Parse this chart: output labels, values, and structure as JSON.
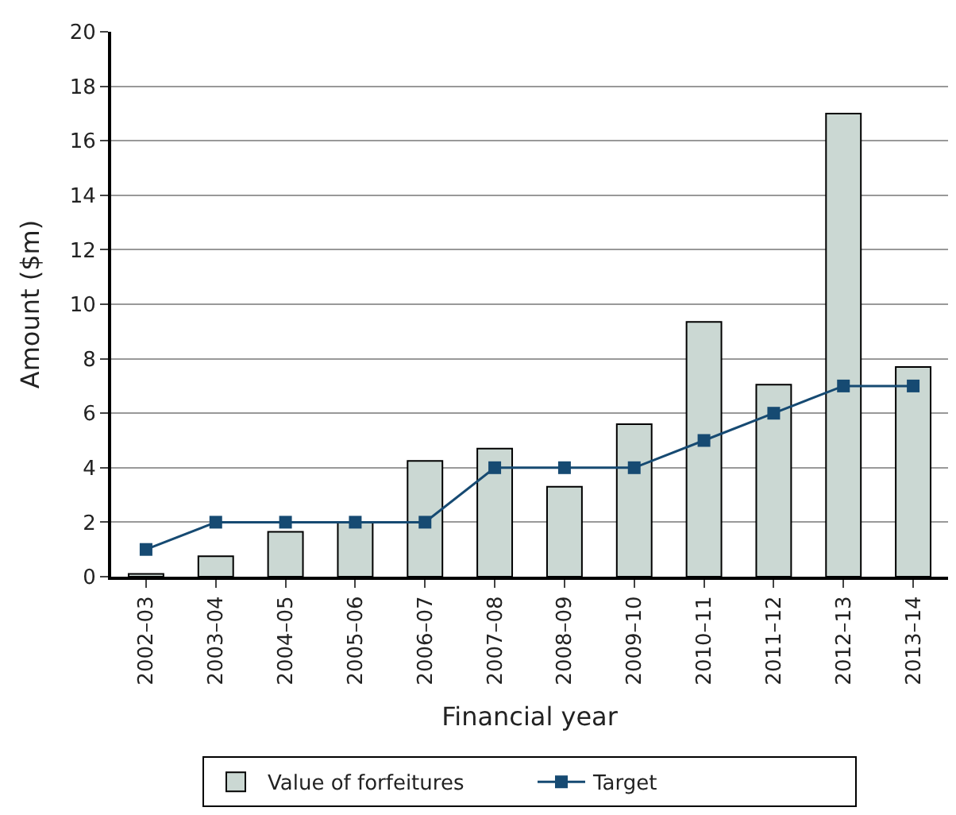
{
  "chart_data": {
    "type": "bar",
    "xlabel": "Financial year",
    "ylabel": "Amount ($m)",
    "categories": [
      "2002–03",
      "2003–04",
      "2004–05",
      "2005–06",
      "2006–07",
      "2007–08",
      "2008–09",
      "2009–10",
      "2010–11",
      "2011–12",
      "2012–13",
      "2013–14"
    ],
    "series": [
      {
        "name": "Value of forfeitures",
        "color": "#cbd8d3",
        "values": [
          0.1,
          0.75,
          1.65,
          2.0,
          4.25,
          4.7,
          3.3,
          5.6,
          9.35,
          7.05,
          17.0,
          7.7
        ]
      },
      {
        "name": "Target",
        "type": "line",
        "color": "#164a72",
        "marker": "square",
        "values": [
          1,
          2,
          2,
          2,
          2,
          4,
          4,
          4,
          5,
          6,
          7,
          7
        ]
      }
    ],
    "ylim": [
      0,
      20
    ],
    "yticks": [
      0,
      2,
      4,
      6,
      8,
      10,
      12,
      14,
      16,
      18,
      20
    ],
    "grid": "y",
    "legend": "bottom"
  }
}
